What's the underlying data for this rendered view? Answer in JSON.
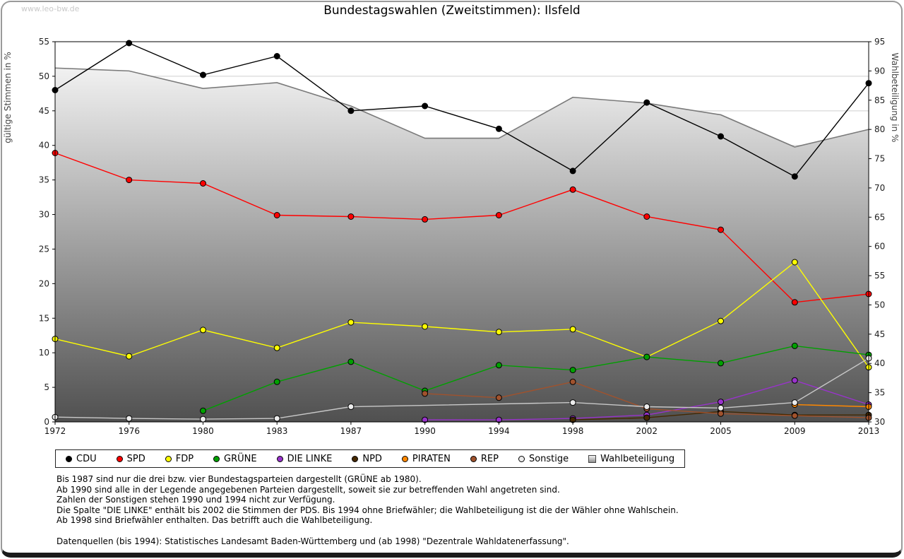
{
  "watermark": "www.leo-bw.de",
  "title": "Bundestagswahlen (Zweitstimmen): Ilsfeld",
  "chart_data": {
    "type": "line",
    "categories": [
      "1972",
      "1976",
      "1980",
      "1983",
      "1987",
      "1990",
      "1994",
      "1998",
      "2002",
      "2005",
      "2009",
      "2013"
    ],
    "y_left": {
      "label": "gültige Stimmen in %",
      "min": 0,
      "max": 55,
      "tick_step": 5
    },
    "y_right": {
      "label": "Wahlbeteiligung in %",
      "min": 30,
      "max": 95,
      "tick_step": 5
    },
    "grid_on": true,
    "grid_color": "#cfcfcf",
    "legend_position": "bottom",
    "area_gradient": {
      "top": "#fdfdfd",
      "bottom": "#505050",
      "edge": "#7a7a7a"
    },
    "series": [
      {
        "id": "cdu",
        "name": "CDU",
        "type": "line",
        "axis": "left",
        "color": "#000000",
        "values": [
          48.0,
          54.8,
          50.2,
          52.9,
          45.0,
          45.7,
          42.4,
          36.3,
          46.2,
          41.3,
          35.5,
          49.0
        ]
      },
      {
        "id": "spd",
        "name": "SPD",
        "type": "line",
        "axis": "left",
        "color": "#ff0000",
        "values": [
          38.9,
          35.0,
          34.5,
          29.9,
          29.7,
          29.3,
          29.9,
          33.6,
          29.7,
          27.8,
          17.3,
          18.5
        ]
      },
      {
        "id": "fdp",
        "name": "FDP",
        "type": "line",
        "axis": "left",
        "color": "#ffff00",
        "values": [
          12.0,
          9.5,
          13.3,
          10.7,
          14.4,
          13.8,
          13.0,
          13.4,
          9.4,
          14.6,
          23.1,
          7.9
        ]
      },
      {
        "id": "gruene",
        "name": "GRÜNE",
        "type": "line",
        "axis": "left",
        "color": "#00a000",
        "values": [
          null,
          null,
          1.6,
          5.8,
          8.7,
          4.5,
          8.2,
          7.5,
          9.4,
          8.5,
          11.0,
          9.7
        ]
      },
      {
        "id": "die-linke",
        "name": "DIE LINKE",
        "type": "line",
        "axis": "left",
        "color": "#9933cc",
        "values": [
          null,
          null,
          null,
          null,
          null,
          0.3,
          0.3,
          0.5,
          1.0,
          2.9,
          6.0,
          2.5
        ]
      },
      {
        "id": "npd",
        "name": "NPD",
        "type": "line",
        "axis": "left",
        "color": "#452800",
        "values": [
          null,
          null,
          null,
          null,
          null,
          null,
          null,
          0.3,
          0.6,
          1.5,
          1.0,
          1.0
        ]
      },
      {
        "id": "piraten",
        "name": "PIRATEN",
        "type": "line",
        "axis": "left",
        "color": "#ff8800",
        "values": [
          null,
          null,
          null,
          null,
          null,
          null,
          null,
          null,
          null,
          null,
          2.5,
          2.2
        ]
      },
      {
        "id": "rep",
        "name": "REP",
        "type": "line",
        "axis": "left",
        "color": "#a0522d",
        "values": [
          null,
          null,
          null,
          null,
          null,
          4.1,
          3.5,
          5.8,
          1.9,
          1.2,
          0.9,
          0.6
        ]
      },
      {
        "id": "sonstige",
        "name": "Sonstige",
        "type": "line",
        "axis": "left",
        "color": "#c8c8c8",
        "fill": "#ececec",
        "values": [
          0.7,
          0.5,
          0.4,
          0.5,
          2.2,
          null,
          null,
          2.8,
          2.2,
          2.0,
          2.8,
          9.2
        ]
      },
      {
        "id": "wahlbeteiligung",
        "name": "Wahlbeteiligung",
        "type": "area",
        "axis": "right",
        "values": [
          90.5,
          90.0,
          87.0,
          88.0,
          84.0,
          78.5,
          78.5,
          85.5,
          84.5,
          82.5,
          77.0,
          80.0
        ]
      }
    ]
  },
  "footnotes": [
    "Bis 1987 sind nur die drei bzw. vier Bundestagsparteien dargestellt (GRÜNE ab 1980).",
    "Ab 1990 sind alle in der Legende angegebenen Parteien dargestellt, soweit sie zur betreffenden Wahl angetreten sind.",
    "Zahlen der Sonstigen stehen 1990 und 1994 nicht zur Verfügung.",
    "Die Spalte \"DIE LINKE\" enthält bis 2002 die Stimmen der PDS. Bis 1994 ohne Briefwähler; die Wahlbeteiligung ist die der Wähler ohne Wahlschein.",
    "Ab 1998 sind Briefwähler enthalten. Das betrifft auch die Wahlbeteiligung.",
    "",
    "Datenquellen (bis 1994): Statistisches Landesamt Baden-Württemberg und (ab 1998) \"Dezentrale Wahldatenerfassung\"."
  ]
}
